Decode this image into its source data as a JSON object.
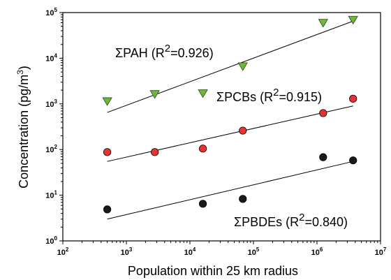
{
  "chart_data": {
    "type": "scatter",
    "xlabel": "Population within 25 km radius",
    "ylabel": "Concentration (pg/m3)",
    "xscale": "log",
    "yscale": "log",
    "xlim": [
      100,
      10000000
    ],
    "ylim": [
      1,
      100000
    ],
    "x_ticks": [
      100,
      1000,
      10000,
      100000,
      1000000,
      10000000
    ],
    "y_ticks": [
      1,
      10,
      100,
      1000,
      10000,
      100000
    ],
    "series": [
      {
        "name": "ΣPAH",
        "label_text": "ΣPAH (R",
        "label_sup": "2",
        "label_end": "=0.926)",
        "marker": "triangle-down",
        "color": "#6fb63a",
        "x": [
          500,
          2800,
          16000,
          68000,
          1250000,
          3700000
        ],
        "y": [
          1150,
          1650,
          1720,
          6700,
          60000,
          70000
        ],
        "fit": {
          "x": [
            500,
            3700000
          ],
          "y": [
            650,
            65000
          ]
        }
      },
      {
        "name": "ΣPCBs",
        "label_text": "ΣPCBs (R",
        "label_sup": "2",
        "label_end": "=0.915)",
        "marker": "circle",
        "color": "#e8332e",
        "x": [
          500,
          2800,
          16000,
          68000,
          1250000,
          3700000
        ],
        "y": [
          88,
          88,
          105,
          260,
          630,
          1300
        ],
        "fit": {
          "x": [
            500,
            3700000
          ],
          "y": [
            55,
            900
          ]
        }
      },
      {
        "name": "ΣPBDEs",
        "label_text": "ΣPBDEs (R",
        "label_sup": "2",
        "label_end": "=0.840)",
        "marker": "circle",
        "color": "#1a1a1a",
        "x": [
          500,
          16000,
          68000,
          1250000,
          3700000
        ],
        "y": [
          4.9,
          6.5,
          8.3,
          68,
          58
        ],
        "fit": {
          "x": [
            500,
            3700000
          ],
          "y": [
            3.0,
            55
          ]
        }
      }
    ]
  }
}
